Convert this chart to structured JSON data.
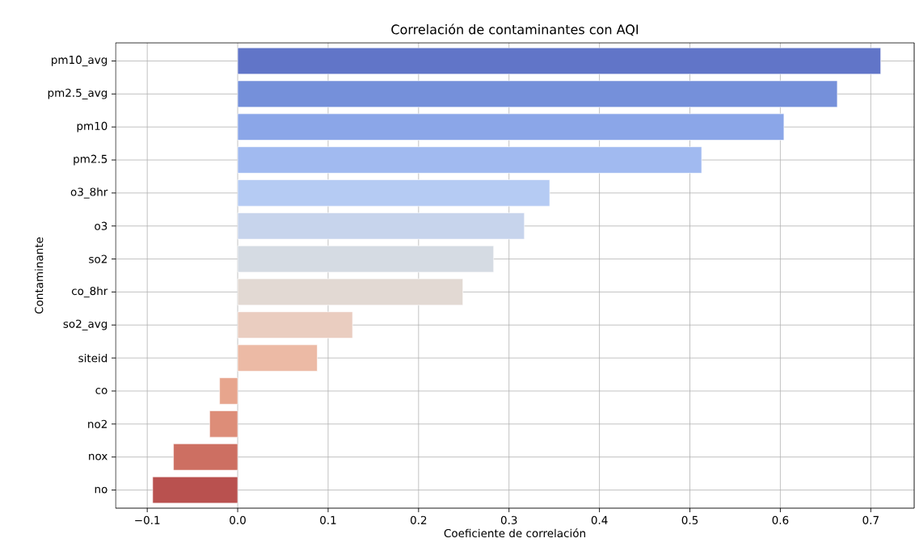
{
  "chart_data": {
    "type": "bar",
    "orientation": "horizontal",
    "title": "Correlación de contaminantes con AQI",
    "xlabel": "Coeficiente de correlación",
    "ylabel": "Contaminante",
    "categories": [
      "pm10_avg",
      "pm2.5_avg",
      "pm10",
      "pm2.5",
      "o3_8hr",
      "o3",
      "so2",
      "co_8hr",
      "so2_avg",
      "siteid",
      "co",
      "no2",
      "nox",
      "no"
    ],
    "values": [
      0.711,
      0.663,
      0.604,
      0.513,
      0.345,
      0.317,
      0.283,
      0.249,
      0.127,
      0.088,
      -0.02,
      -0.031,
      -0.071,
      -0.094
    ],
    "colors": [
      "#6175c8",
      "#7590da",
      "#8ba6e8",
      "#a1baf0",
      "#b5cbf3",
      "#c7d4ec",
      "#d5dbe3",
      "#e2d9d3",
      "#eacdc0",
      "#ecbaa5",
      "#e7a58d",
      "#dd8d78",
      "#cd6f62",
      "#b9514f"
    ],
    "xlim": [
      -0.135,
      0.748
    ],
    "xticks": [
      {
        "value": -0.1,
        "label": "−0.1"
      },
      {
        "value": 0,
        "label": "0.0"
      },
      0.1,
      0.2,
      0.3,
      0.4,
      0.5,
      0.6,
      0.7
    ],
    "grid": true
  }
}
